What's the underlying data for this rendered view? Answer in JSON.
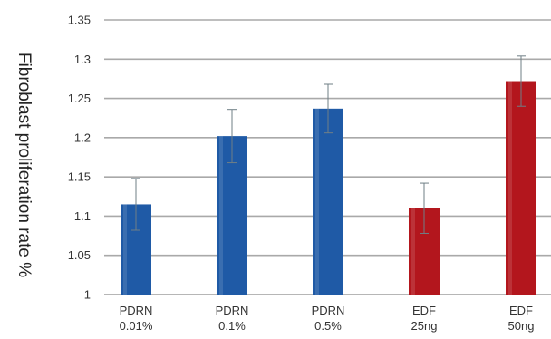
{
  "chart_data": {
    "type": "bar",
    "ylabel": "Fibroblast proliferation rate %",
    "ylim": [
      1,
      1.35
    ],
    "yticks": [
      "1",
      "1.05",
      "1.1",
      "1.15",
      "1.2",
      "1.25",
      "1.3",
      "1.35"
    ],
    "grid": true,
    "categories": [
      [
        "PDRN",
        "0.01%"
      ],
      [
        "PDRN",
        "0.1%"
      ],
      [
        "PDRN",
        "0.5%"
      ],
      [
        "EDF",
        "25ng"
      ],
      [
        "EDF",
        "50ng"
      ]
    ],
    "values": [
      1.115,
      1.202,
      1.237,
      1.11,
      1.272
    ],
    "errors": [
      0.033,
      0.034,
      0.031,
      0.032,
      0.032
    ],
    "bar_colors": [
      "#1f5aa6",
      "#1f5aa6",
      "#1f5aa6",
      "#b3161d",
      "#b3161d"
    ],
    "grid_color": "#a9a9a9",
    "axis_color": "#8a8a8a"
  }
}
